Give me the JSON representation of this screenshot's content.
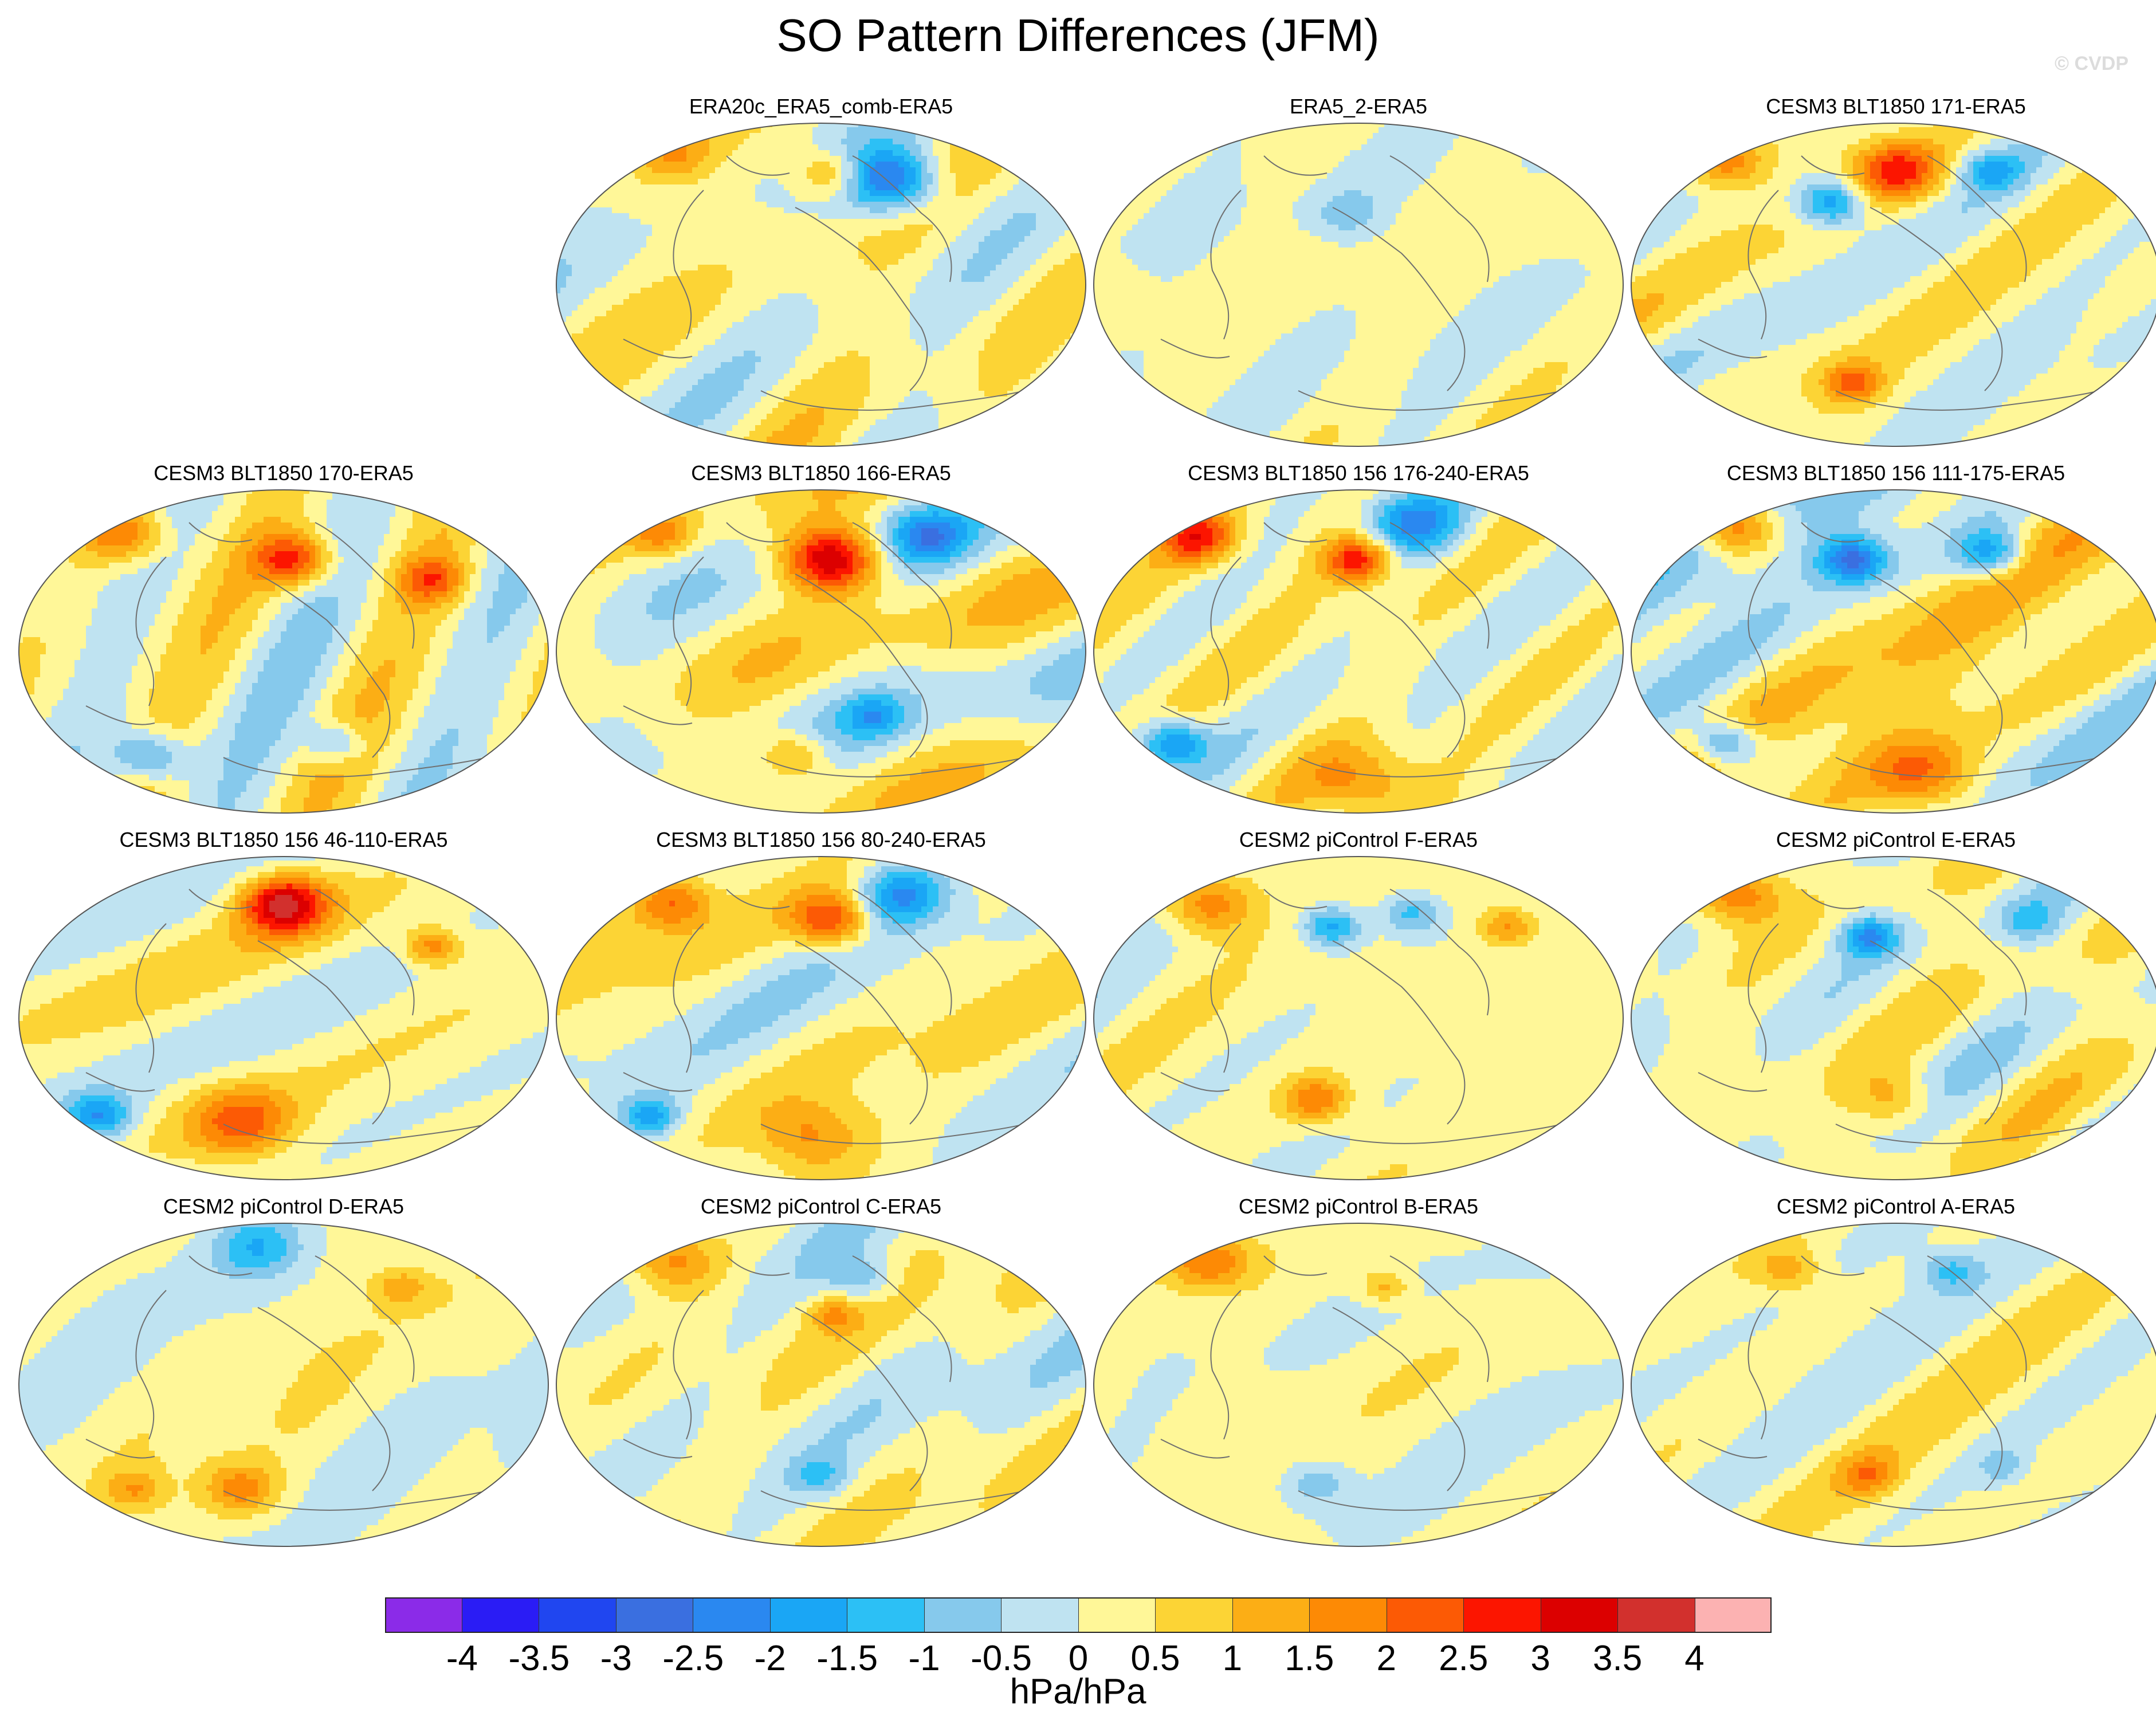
{
  "figure": {
    "title": "SO Pattern Differences (JFM)",
    "watermark": "© CVDP",
    "units": "hPa/hPa"
  },
  "panels": [
    {
      "title": "ERA20c_ERA5_comb-ERA5",
      "seed": 11,
      "amp": 1.3,
      "blobs": [
        [
          0.63,
          0.18,
          1,
          -2.2
        ],
        [
          0.52,
          0.16,
          0.7,
          1.2
        ],
        [
          0.22,
          0.1,
          0.8,
          0.9
        ]
      ]
    },
    {
      "title": "ERA5_2-ERA5",
      "seed": 23,
      "amp": 0.7,
      "blobs": [
        [
          0.48,
          0.28,
          0.7,
          -1.2
        ]
      ]
    },
    {
      "title": "CESM3 BLT1850 171-ERA5",
      "seed": 37,
      "amp": 1.2,
      "blobs": [
        [
          0.5,
          0.15,
          0.9,
          2.0
        ],
        [
          0.38,
          0.25,
          0.7,
          -1.8
        ],
        [
          0.18,
          0.12,
          0.8,
          1.4
        ],
        [
          0.68,
          0.15,
          0.6,
          -1.3
        ],
        [
          0.42,
          0.8,
          0.6,
          1.5
        ]
      ]
    },
    {
      "title": "CESM3 BLT1850 170-ERA5",
      "seed": 41,
      "amp": 1.2,
      "blobs": [
        [
          0.2,
          0.14,
          0.9,
          1.6
        ],
        [
          0.52,
          0.22,
          0.8,
          2.0
        ],
        [
          0.78,
          0.28,
          0.7,
          1.5
        ],
        [
          0.25,
          0.82,
          0.8,
          -1.4
        ],
        [
          0.6,
          0.78,
          0.6,
          -1.3
        ]
      ]
    },
    {
      "title": "CESM3 BLT1850 166-ERA5",
      "seed": 53,
      "amp": 1.2,
      "blobs": [
        [
          0.52,
          0.22,
          1,
          3.0
        ],
        [
          0.7,
          0.15,
          0.8,
          -1.5
        ],
        [
          0.2,
          0.14,
          0.7,
          1.2
        ],
        [
          0.45,
          0.82,
          0.7,
          1.3
        ],
        [
          0.6,
          0.7,
          0.6,
          -1.2
        ]
      ]
    },
    {
      "title": "CESM3 BLT1850 156 176-240-ERA5",
      "seed": 61,
      "amp": 1.3,
      "blobs": [
        [
          0.6,
          0.1,
          1,
          -1.8
        ],
        [
          0.2,
          0.15,
          0.8,
          1.8
        ],
        [
          0.5,
          0.22,
          0.7,
          2.0
        ],
        [
          0.5,
          0.9,
          1.2,
          1.2
        ],
        [
          0.15,
          0.78,
          0.7,
          -1.8
        ]
      ]
    },
    {
      "title": "CESM3 BLT1850 156 111-175-ERA5",
      "seed": 71,
      "amp": 1.3,
      "blobs": [
        [
          0.2,
          0.12,
          0.9,
          1.8
        ],
        [
          0.42,
          0.22,
          0.7,
          -2.0
        ],
        [
          0.68,
          0.2,
          0.7,
          -1.6
        ],
        [
          0.55,
          0.88,
          1.1,
          1.4
        ],
        [
          0.18,
          0.78,
          0.7,
          -1.7
        ]
      ]
    },
    {
      "title": "CESM3 BLT1850 156 46-110-ERA5",
      "seed": 83,
      "amp": 1.2,
      "blobs": [
        [
          0.5,
          0.15,
          0.9,
          2.8
        ],
        [
          0.78,
          0.28,
          0.6,
          1.5
        ],
        [
          0.42,
          0.82,
          1.1,
          1.6
        ],
        [
          0.15,
          0.8,
          0.7,
          -1.8
        ]
      ]
    },
    {
      "title": "CESM3 BLT1850 156 80-240-ERA5",
      "seed": 97,
      "amp": 1.2,
      "blobs": [
        [
          0.52,
          0.2,
          0.8,
          2.0
        ],
        [
          0.65,
          0.12,
          0.9,
          -1.7
        ],
        [
          0.22,
          0.15,
          0.8,
          1.4
        ],
        [
          0.48,
          0.86,
          1.1,
          1.2
        ],
        [
          0.18,
          0.8,
          0.6,
          -1.5
        ]
      ]
    },
    {
      "title": "CESM2 piControl F-ERA5",
      "seed": 103,
      "amp": 1.1,
      "blobs": [
        [
          0.22,
          0.15,
          0.9,
          1.6
        ],
        [
          0.45,
          0.22,
          0.6,
          -1.7
        ],
        [
          0.78,
          0.22,
          0.6,
          1.4
        ],
        [
          0.42,
          0.75,
          0.7,
          1.6
        ],
        [
          0.6,
          0.18,
          0.6,
          -1.2
        ]
      ]
    },
    {
      "title": "CESM2 piControl E-ERA5",
      "seed": 109,
      "amp": 1.1,
      "blobs": [
        [
          0.2,
          0.12,
          0.9,
          1.8
        ],
        [
          0.45,
          0.25,
          0.6,
          -1.9
        ],
        [
          0.75,
          0.2,
          0.6,
          -1.1
        ],
        [
          0.5,
          0.75,
          0.8,
          1.0
        ]
      ]
    },
    {
      "title": "CESM2 piControl D-ERA5",
      "seed": 113,
      "amp": 1.0,
      "blobs": [
        [
          0.45,
          0.08,
          0.9,
          -1.4
        ],
        [
          0.42,
          0.82,
          0.8,
          1.6
        ],
        [
          0.22,
          0.82,
          0.6,
          1.2
        ],
        [
          0.72,
          0.2,
          0.6,
          1.1
        ]
      ]
    },
    {
      "title": "CESM2 piControl C-ERA5",
      "seed": 127,
      "amp": 1.0,
      "blobs": [
        [
          0.22,
          0.12,
          0.9,
          1.7
        ],
        [
          0.58,
          0.18,
          0.7,
          -1.2
        ],
        [
          0.52,
          0.28,
          0.5,
          1.1
        ],
        [
          0.5,
          0.78,
          0.6,
          -1.0
        ]
      ]
    },
    {
      "title": "CESM2 piControl B-ERA5",
      "seed": 131,
      "amp": 1.0,
      "blobs": [
        [
          0.22,
          0.12,
          0.9,
          1.8
        ],
        [
          0.55,
          0.2,
          0.5,
          1.2
        ],
        [
          0.42,
          0.8,
          0.7,
          -1.0
        ]
      ]
    },
    {
      "title": "CESM2 piControl A-ERA5",
      "seed": 137,
      "amp": 1.0,
      "blobs": [
        [
          0.3,
          0.15,
          0.7,
          1.1
        ],
        [
          0.6,
          0.15,
          0.6,
          -1.1
        ],
        [
          0.45,
          0.78,
          0.6,
          1.3
        ],
        [
          0.7,
          0.75,
          0.5,
          -0.9
        ]
      ]
    }
  ],
  "colorbar": {
    "colors": [
      "#8b2be8",
      "#2a1cf5",
      "#2046f0",
      "#3a6fe0",
      "#2a88f0",
      "#1aa6f5",
      "#2cc0f5",
      "#86c9ec",
      "#bfe3f1",
      "#fff798",
      "#fcd435",
      "#fcae15",
      "#fd8a05",
      "#fc5a05",
      "#fc1500",
      "#dc0000",
      "#d2302d",
      "#fcb2b2"
    ],
    "labels": [
      "-4",
      "-3.5",
      "-3",
      "-2.5",
      "-2",
      "-1.5",
      "-1",
      "-0.5",
      "0",
      "0.5",
      "1",
      "1.5",
      "2",
      "2.5",
      "3",
      "3.5",
      "4"
    ],
    "levels": [
      -4,
      -3.5,
      -3,
      -2.5,
      -2,
      -1.5,
      -1,
      -0.5,
      0,
      0.5,
      1,
      1.5,
      2,
      2.5,
      3,
      3.5,
      4
    ]
  }
}
